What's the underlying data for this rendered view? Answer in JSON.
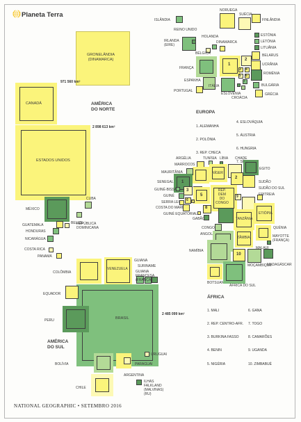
{
  "publication": {
    "title": "Planeta Terra",
    "footer": "NATIONAL GEOGRAPHIC • SETEMBRO 2016"
  },
  "colors": {
    "green_dark": "#5b9a5b",
    "green_mid": "#7fc07d",
    "green_light": "#b3da97",
    "yellow": "#fbf47b",
    "yellow_light": "#fdf9b5",
    "outline": "#3e3e3e"
  },
  "regions": {
    "north_america": "AMÉRICA\nDO NORTE",
    "south_america": "AMÉRICA\nDO SUL",
    "europe": "EUROPA",
    "africa": "ÁFRICA"
  },
  "areas": {
    "canada": "971 560 km²",
    "usa": "2 898 613 km²",
    "brazil": "2 485 099 km²"
  },
  "countries": {
    "islandia": "ISLÂNDIA",
    "noruega": "NORUEGA",
    "suecia": "SUÉCIA",
    "finlandia": "FINLÂNDIA",
    "reino_unido": "REINO UNIDO",
    "irlanda": "IRLANDA\n(EIRE)",
    "holanda": "HOLANDA",
    "dinamarca": "DINAMARCA",
    "estonia": "ESTÓNIA",
    "letonia": "LETÓNIA",
    "lituania": "LITUÂNIA",
    "belarus": "BELARUS",
    "ucrania": "UCRÂNIA",
    "belgica": "BÉLGICA",
    "franca": "FRANÇA",
    "espanha": "ESPANHA",
    "portugal": "PORTUGAL",
    "italia": "ITÁLIA",
    "eslovenia": "ESLOVÉNIA",
    "croacia": "CROÁCIA",
    "romenia": "ROMÉNIA",
    "bulgaria": "BULGÁRIA",
    "grecia": "GRÉCIA",
    "groenlandia": "GRONELÂNDIA\n(DINAMARCA)",
    "canada": "CANADÁ",
    "estados_unidos": "ESTADOS UNIDOS",
    "mexico": "MÉXICO",
    "cuba": "CUBA",
    "guatemala": "GUATEMALA",
    "belize": "BELIZE",
    "honduras": "HONDURAS",
    "nicaragua": "NICARÁGUA",
    "rep_dominicana": "REPÚBLICA\nDOMINICANA",
    "costa_rica": "COSTA RICA",
    "panama": "PANAMÁ",
    "colombia": "COLÔMBIA",
    "venezuela": "VENEZUELA",
    "guiana": "GUIANA",
    "suriname": "SURINAME",
    "guiana_francesa": "GUIANA\nFRANCESA\n(FRANÇA)",
    "equador": "EQUADOR",
    "peru": "PERU",
    "brasil": "BRASIL",
    "bolivia": "BOLÍVIA",
    "paraguai": "PARAGUAI",
    "uruguai": "URUGUAI",
    "argentina": "ARGENTINA",
    "chile": "CHILE",
    "falkland": "ILHAS\nFALKLAND\n(MALVINAS)\n(RU)",
    "argelia": "ARGÉLIA",
    "tunisia": "TUNÍSIA",
    "libia": "LÍBIA",
    "chade": "CHADE",
    "marrocos": "MARROCOS",
    "egito": "EGITO",
    "mauritania": "MAURITÂNIA",
    "niger": "NÍGER",
    "sudao": "SUDÃO",
    "senegal": "SENEGAL",
    "sudao_do_sul": "SUDÃO DO SUL",
    "guine_bissau": "GUINÉ-BISSAU",
    "guine": "GUINÉ",
    "eritreia": "ERITREIA",
    "serra_leoa": "SERRA LEOA",
    "costa_do_marfim": "COSTA DO MARFIM",
    "rep_dem_congo": "REP.\nDEM\nDO\nCONGO",
    "etiopia": "ETIÓPIA",
    "guine_equatorial": "GUINÉ EQUATORIAL",
    "gabao": "GABÃO",
    "tanzania": "TANZÂNIA",
    "congo": "CONGO",
    "angola": "ANGOLA",
    "zambia": "ZÂMBIA",
    "quenia": "QUÉNIA",
    "mayotte": "MAYOTTE\n(FRANÇA)",
    "malaui": "MALAUI",
    "namibia": "NAMÍBIA",
    "mocambique": "MOÇAMBIQUE",
    "madagascar": "MADAGÁSCAR",
    "botsuana": "BOTSUANA",
    "africa_do_sul": "ÁFRICA DO SUL"
  },
  "europe_legend": {
    "col1": [
      "1. ALEMANHA",
      "2. POLÓNIA",
      "3. REP. CHECA"
    ],
    "col2": [
      "4. ESLOVÁQUIA",
      "5. ÁUSTRIA",
      "6. HUNGRIA",
      "7. SÉRVIA"
    ]
  },
  "africa_legend": {
    "col1": [
      "1. MALI",
      "2. REP. CENTRO-AFR.",
      "3. BURKINA FASSO",
      "4. BENIN",
      "5. NIGÉRIA"
    ],
    "col2": [
      "6. GANA",
      "7. TOGO",
      "8. CAMARÕES",
      "9. UGANDA",
      "10. ZIMBABUÉ"
    ]
  },
  "numbers": [
    "1",
    "2",
    "3",
    "4",
    "5",
    "6",
    "7",
    "8",
    "9",
    "10"
  ]
}
